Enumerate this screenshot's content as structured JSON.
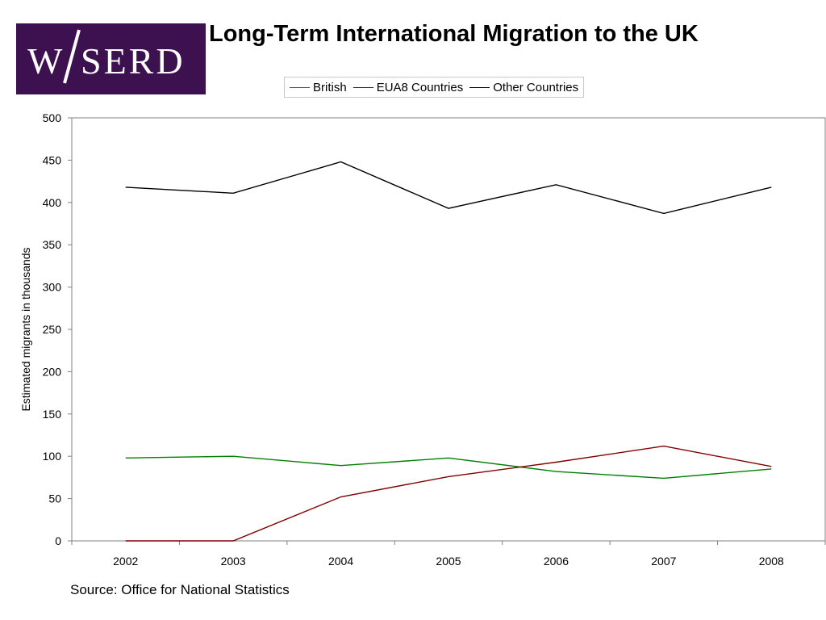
{
  "logo": {
    "text": "W/SERD",
    "bg": "#3d1150"
  },
  "chart_data": {
    "type": "line",
    "title": "Long-Term International Migration to the UK",
    "xlabel": "",
    "ylabel": "Estimated migrants in thousands",
    "categories": [
      "2002",
      "2003",
      "2004",
      "2005",
      "2006",
      "2007",
      "2008"
    ],
    "ylim": [
      0,
      500
    ],
    "yticks": [
      0,
      50,
      100,
      150,
      200,
      250,
      300,
      350,
      400,
      450,
      500
    ],
    "grid": false,
    "legend_position": "top",
    "series": [
      {
        "name": "British",
        "color": "#008000",
        "values": [
          98,
          100,
          89,
          98,
          82,
          74,
          85
        ]
      },
      {
        "name": "EUA8 Countries",
        "color": "#800000",
        "values": [
          0,
          0,
          52,
          76,
          93,
          112,
          88
        ]
      },
      {
        "name": "Other Countries",
        "color": "#000000",
        "values": [
          418,
          411,
          448,
          393,
          421,
          387,
          418
        ]
      }
    ]
  },
  "source": "Source: Office for National Statistics"
}
